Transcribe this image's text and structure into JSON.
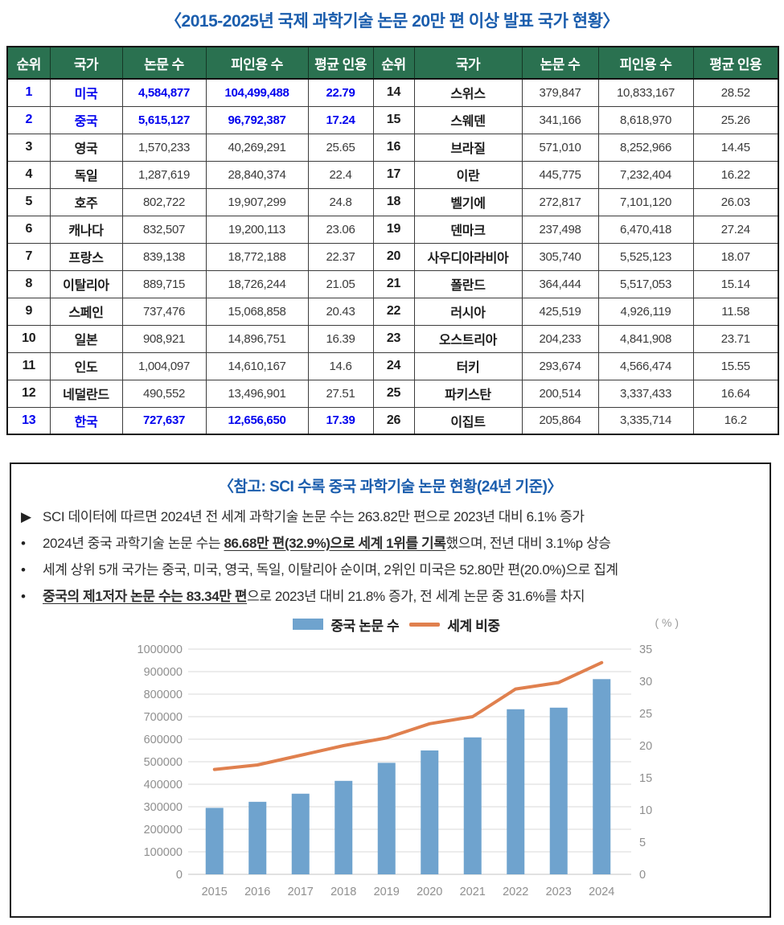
{
  "page_title": "〈2015-2025년 국제 과학기술 논문 20만 편 이상 발표 국가 현황〉",
  "colors": {
    "title_blue": "#1A5DAD",
    "header_green": "#2A7150",
    "highlight_blue": "#0000EE",
    "bar_blue": "#6FA3CE",
    "line_orange": "#E0804E"
  },
  "table": {
    "headers": [
      "순위",
      "국가",
      "논문 수",
      "피인용 수",
      "평균 인용",
      "순위",
      "국가",
      "논문 수",
      "피인용 수",
      "평균 인용"
    ],
    "rows_left": [
      {
        "rank": "1",
        "country": "미국",
        "papers": "4,584,877",
        "citations": "104,499,488",
        "avg": "22.79",
        "highlight": true
      },
      {
        "rank": "2",
        "country": "중국",
        "papers": "5,615,127",
        "citations": "96,792,387",
        "avg": "17.24",
        "highlight": true
      },
      {
        "rank": "3",
        "country": "영국",
        "papers": "1,570,233",
        "citations": "40,269,291",
        "avg": "25.65",
        "highlight": false
      },
      {
        "rank": "4",
        "country": "독일",
        "papers": "1,287,619",
        "citations": "28,840,374",
        "avg": "22.4",
        "highlight": false
      },
      {
        "rank": "5",
        "country": "호주",
        "papers": "802,722",
        "citations": "19,907,299",
        "avg": "24.8",
        "highlight": false
      },
      {
        "rank": "6",
        "country": "캐나다",
        "papers": "832,507",
        "citations": "19,200,113",
        "avg": "23.06",
        "highlight": false
      },
      {
        "rank": "7",
        "country": "프랑스",
        "papers": "839,138",
        "citations": "18,772,188",
        "avg": "22.37",
        "highlight": false
      },
      {
        "rank": "8",
        "country": "이탈리아",
        "papers": "889,715",
        "citations": "18,726,244",
        "avg": "21.05",
        "highlight": false
      },
      {
        "rank": "9",
        "country": "스페인",
        "papers": "737,476",
        "citations": "15,068,858",
        "avg": "20.43",
        "highlight": false
      },
      {
        "rank": "10",
        "country": "일본",
        "papers": "908,921",
        "citations": "14,896,751",
        "avg": "16.39",
        "highlight": false
      },
      {
        "rank": "11",
        "country": "인도",
        "papers": "1,004,097",
        "citations": "14,610,167",
        "avg": "14.6",
        "highlight": false
      },
      {
        "rank": "12",
        "country": "네덜란드",
        "papers": "490,552",
        "citations": "13,496,901",
        "avg": "27.51",
        "highlight": false
      },
      {
        "rank": "13",
        "country": "한국",
        "papers": "727,637",
        "citations": "12,656,650",
        "avg": "17.39",
        "highlight": true
      }
    ],
    "rows_right": [
      {
        "rank": "14",
        "country": "스위스",
        "papers": "379,847",
        "citations": "10,833,167",
        "avg": "28.52",
        "highlight": false
      },
      {
        "rank": "15",
        "country": "스웨덴",
        "papers": "341,166",
        "citations": "8,618,970",
        "avg": "25.26",
        "highlight": false
      },
      {
        "rank": "16",
        "country": "브라질",
        "papers": "571,010",
        "citations": "8,252,966",
        "avg": "14.45",
        "highlight": false
      },
      {
        "rank": "17",
        "country": "이란",
        "papers": "445,775",
        "citations": "7,232,404",
        "avg": "16.22",
        "highlight": false
      },
      {
        "rank": "18",
        "country": "벨기에",
        "papers": "272,817",
        "citations": "7,101,120",
        "avg": "26.03",
        "highlight": false
      },
      {
        "rank": "19",
        "country": "덴마크",
        "papers": "237,498",
        "citations": "6,470,418",
        "avg": "27.24",
        "highlight": false
      },
      {
        "rank": "20",
        "country": "사우디아라비아",
        "papers": "305,740",
        "citations": "5,525,123",
        "avg": "18.07",
        "highlight": false
      },
      {
        "rank": "21",
        "country": "폴란드",
        "papers": "364,444",
        "citations": "5,517,053",
        "avg": "15.14",
        "highlight": false
      },
      {
        "rank": "22",
        "country": "러시아",
        "papers": "425,519",
        "citations": "4,926,119",
        "avg": "11.58",
        "highlight": false
      },
      {
        "rank": "23",
        "country": "오스트리아",
        "papers": "204,233",
        "citations": "4,841,908",
        "avg": "23.71",
        "highlight": false
      },
      {
        "rank": "24",
        "country": "터키",
        "papers": "293,674",
        "citations": "4,566,474",
        "avg": "15.55",
        "highlight": false
      },
      {
        "rank": "25",
        "country": "파키스탄",
        "papers": "200,514",
        "citations": "3,337,433",
        "avg": "16.64",
        "highlight": false
      },
      {
        "rank": "26",
        "country": "이집트",
        "papers": "205,864",
        "citations": "3,335,714",
        "avg": "16.2",
        "highlight": false
      }
    ]
  },
  "ref_box": {
    "title": "〈참고: SCI 수록 중국 과학기술 논문 현황(24년 기준)〉",
    "bullets": [
      {
        "marker": "▶",
        "parts": [
          {
            "text": "SCI 데이터에 따르면 2024년 전 세계 과학기술 논문 수는 263.82만 편으로 2023년 대비 6.1% 증가",
            "underline": false
          }
        ]
      },
      {
        "marker": "•",
        "parts": [
          {
            "text": "2024년 중국 과학기술 논문 수는 ",
            "underline": false
          },
          {
            "text": "86.68만 편(32.9%)으로 세계 1위를 기록",
            "underline": true
          },
          {
            "text": "했으며, 전년 대비 3.1%p 상승",
            "underline": false
          }
        ]
      },
      {
        "marker": "•",
        "parts": [
          {
            "text": "세계 상위 5개 국가는 중국, 미국, 영국, 독일, 이탈리아 순이며, 2위인 미국은 52.80만 편(20.0%)으로 집계",
            "underline": false
          }
        ]
      },
      {
        "marker": "•",
        "parts": [
          {
            "text": "중국의 제1저자 논문 수는 83.34만 편",
            "underline": true
          },
          {
            "text": "으로 2023년 대비 21.8% 증가, 전 세계 논문 중 31.6%를 차지",
            "underline": false
          }
        ]
      }
    ]
  },
  "chart_data": {
    "type": "bar+line",
    "title": "",
    "categories": [
      "2015",
      "2016",
      "2017",
      "2018",
      "2019",
      "2020",
      "2021",
      "2022",
      "2023",
      "2024"
    ],
    "series": [
      {
        "name": "중국 논문 수",
        "type": "bar",
        "axis": "left",
        "color": "#6FA3CE",
        "values": [
          295000,
          322000,
          358000,
          415000,
          495000,
          550000,
          608000,
          733000,
          740000,
          866800
        ]
      },
      {
        "name": "세계 비중",
        "type": "line",
        "axis": "right",
        "color": "#E0804E",
        "values": [
          16.3,
          17.0,
          18.5,
          20.0,
          21.2,
          23.4,
          24.5,
          28.8,
          29.8,
          32.9
        ]
      }
    ],
    "left_axis": {
      "min": 0,
      "max": 1000000,
      "step": 100000
    },
    "right_axis": {
      "min": 0,
      "max": 35,
      "step": 5,
      "unit": "( % )"
    },
    "legend_position": "top",
    "grid": true
  }
}
